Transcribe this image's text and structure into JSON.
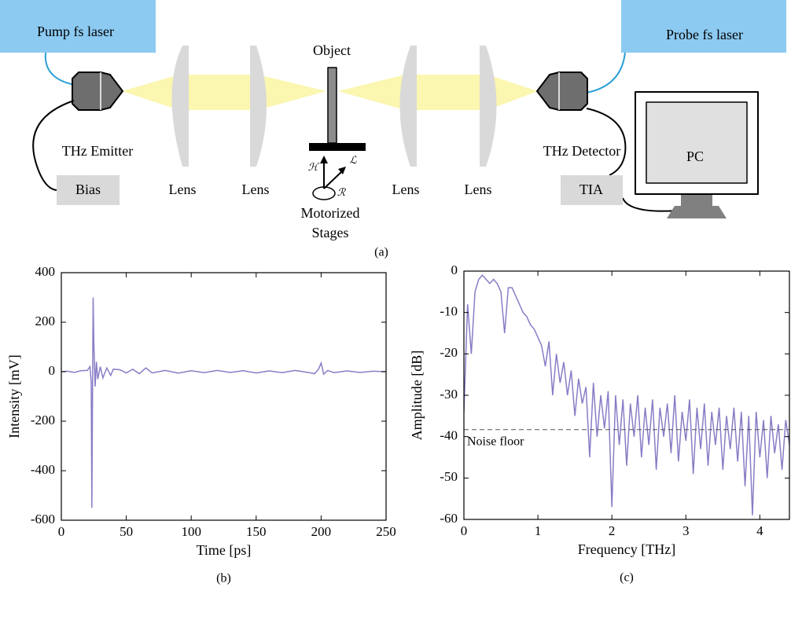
{
  "diagram": {
    "caption": "(a)",
    "pump": "Pump fs laser",
    "probe": "Probe fs laser",
    "emitter": "THz Emitter",
    "detector": "THz Detector",
    "bias": "Bias",
    "tia": "TIA",
    "pc": "PC",
    "object": "Object",
    "lenses": [
      "Lens",
      "Lens",
      "Lens",
      "Lens"
    ],
    "stage_axes": [
      "ℋ",
      "ℒ",
      "ℛ"
    ],
    "stages": [
      "Motorized",
      "Stages"
    ]
  },
  "chart_data": [
    {
      "type": "line",
      "caption": "(b)",
      "xlabel": "Time [ps]",
      "ylabel": "Intensity [mV]",
      "color": "#8a7cc6",
      "x": [
        0,
        5,
        10,
        15,
        20,
        22,
        23,
        23.5,
        24,
        24.5,
        25,
        26,
        27,
        28,
        30,
        32,
        35,
        38,
        40,
        45,
        50,
        55,
        60,
        65,
        70,
        80,
        90,
        100,
        110,
        120,
        130,
        140,
        150,
        160,
        170,
        180,
        190,
        195,
        198,
        200,
        202,
        205,
        210,
        220,
        230,
        240,
        250
      ],
      "values": [
        0,
        2,
        -3,
        4,
        5,
        20,
        -40,
        -550,
        -100,
        300,
        120,
        -60,
        40,
        -30,
        20,
        -25,
        15,
        -15,
        10,
        8,
        -5,
        10,
        -8,
        15,
        -5,
        5,
        -6,
        4,
        -4,
        5,
        -3,
        4,
        -5,
        3,
        -4,
        5,
        -3,
        -8,
        10,
        35,
        -10,
        5,
        -4,
        3,
        -3,
        2,
        0
      ],
      "xlim": [
        0,
        250
      ],
      "ylim": [
        -600,
        400
      ],
      "xticks": [
        0,
        50,
        100,
        150,
        200,
        250
      ],
      "yticks": [
        -600,
        -400,
        -200,
        0,
        200,
        400
      ]
    },
    {
      "type": "line",
      "caption": "(c)",
      "xlabel": "Frequency [THz]",
      "ylabel": "Amplitude [dB]",
      "color": "#8a7cc6",
      "x": [
        0,
        0.05,
        0.1,
        0.15,
        0.2,
        0.25,
        0.3,
        0.35,
        0.4,
        0.45,
        0.5,
        0.55,
        0.6,
        0.65,
        0.7,
        0.75,
        0.8,
        0.85,
        0.9,
        0.95,
        1.0,
        1.05,
        1.1,
        1.15,
        1.2,
        1.25,
        1.3,
        1.35,
        1.4,
        1.45,
        1.5,
        1.55,
        1.6,
        1.65,
        1.7,
        1.75,
        1.8,
        1.85,
        1.9,
        1.95,
        2.0,
        2.05,
        2.1,
        2.15,
        2.2,
        2.25,
        2.3,
        2.35,
        2.4,
        2.45,
        2.5,
        2.55,
        2.6,
        2.65,
        2.7,
        2.75,
        2.8,
        2.85,
        2.9,
        2.95,
        3.0,
        3.05,
        3.1,
        3.15,
        3.2,
        3.25,
        3.3,
        3.35,
        3.4,
        3.45,
        3.5,
        3.55,
        3.6,
        3.65,
        3.7,
        3.75,
        3.8,
        3.85,
        3.9,
        3.95,
        4.0,
        4.05,
        4.1,
        4.15,
        4.2,
        4.25,
        4.3,
        4.35,
        4.4
      ],
      "values": [
        -34,
        -8,
        -20,
        -5,
        -2,
        -1,
        -2,
        -3,
        -2,
        -3,
        -5,
        -15,
        -4,
        -4,
        -6,
        -8,
        -10,
        -11,
        -13,
        -14,
        -16,
        -18,
        -23,
        -17,
        -30,
        -20,
        -27,
        -22,
        -30,
        -24,
        -35,
        -26,
        -32,
        -28,
        -45,
        -27,
        -40,
        -30,
        -38,
        -29,
        -57,
        -30,
        -42,
        -31,
        -47,
        -32,
        -40,
        -30,
        -45,
        -33,
        -42,
        -31,
        -48,
        -33,
        -40,
        -32,
        -44,
        -30,
        -46,
        -34,
        -41,
        -31,
        -49,
        -33,
        -43,
        -32,
        -47,
        -34,
        -42,
        -33,
        -48,
        -35,
        -43,
        -33,
        -46,
        -34,
        -52,
        -35,
        -59,
        -34,
        -45,
        -36,
        -50,
        -35,
        -44,
        -37,
        -48,
        -36,
        -42
      ],
      "xlim": [
        0,
        4.4
      ],
      "ylim": [
        -60,
        0
      ],
      "xticks": [
        0,
        1,
        2,
        3,
        4
      ],
      "yticks": [
        -60,
        -50,
        -40,
        -30,
        -20,
        -10,
        0
      ],
      "noise_floor": -38.3,
      "noise_floor_label": "Noise floor"
    }
  ]
}
